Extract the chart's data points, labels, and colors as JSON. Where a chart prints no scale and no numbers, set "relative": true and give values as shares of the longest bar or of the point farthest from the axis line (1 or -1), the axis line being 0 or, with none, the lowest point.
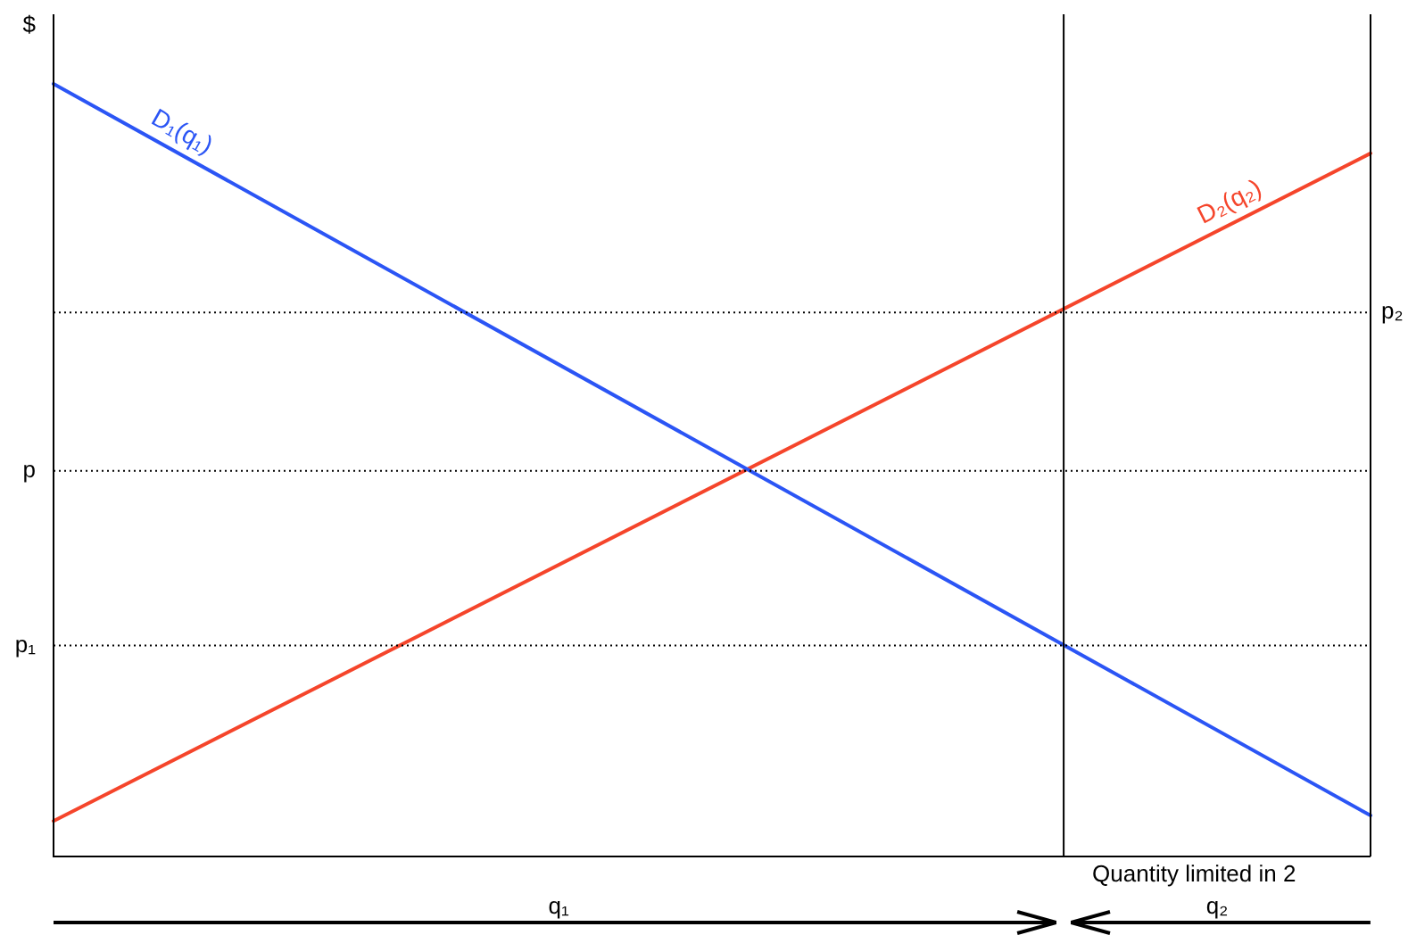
{
  "chart_data": {
    "type": "line",
    "relative": true,
    "ylabel": "$",
    "categories": [
      null,
      null
    ],
    "legend": false,
    "marker": "none",
    "line_style": "solid",
    "series": [
      {
        "name": "D₁(q₁)",
        "color": "#2b55f5",
        "values": [
          1,
          0.053
        ]
      },
      {
        "name": "D₂(q₂)",
        "color": "#f5452b",
        "values": [
          0.046,
          0.91
        ]
      }
    ],
    "ref_lines": [
      {
        "axis": "y",
        "value": 0.499,
        "label": "p",
        "color": "#000000",
        "line_style": "dotted"
      },
      {
        "axis": "y",
        "value": 0.273,
        "label": "p₁",
        "color": "#000000",
        "line_style": "dotted"
      },
      {
        "axis": "y",
        "value": 0.704,
        "color": "#000000",
        "line_style": "dotted"
      }
    ],
    "annotations": [
      "Quantity limited in 2",
      "q₁",
      "q₂",
      "p₂"
    ]
  }
}
